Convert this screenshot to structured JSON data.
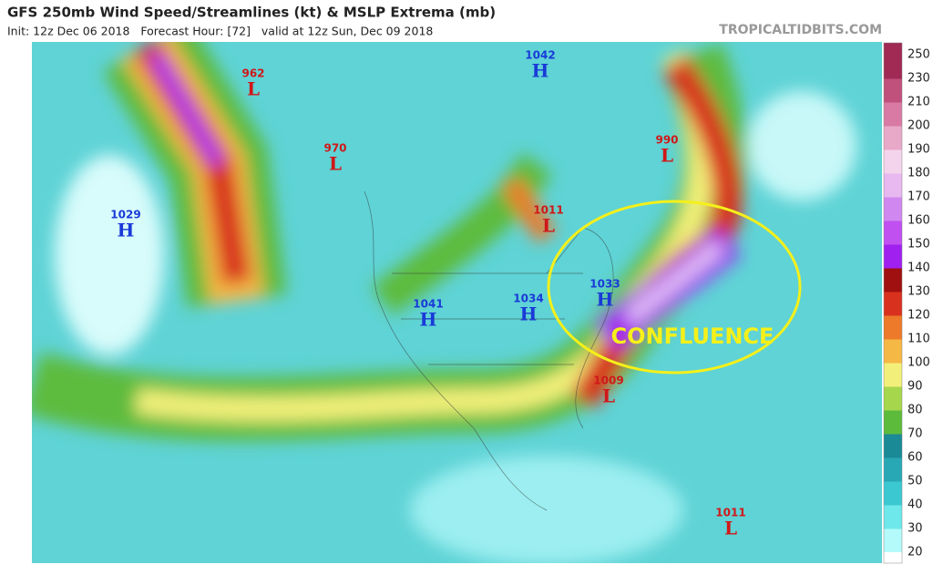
{
  "header": {
    "title": "GFS 250mb Wind Speed/Streamlines (kt) & MSLP Extrema (mb)",
    "subtitle": "Init: 12z Dec 06 2018   Forecast Hour: [72]   valid at 12z Sun, Dec 09 2018",
    "source": "TROPICALTIDBITS.COM"
  },
  "pressure_centers": [
    {
      "type": "L",
      "value": 962
    },
    {
      "type": "L",
      "value": 970
    },
    {
      "type": "H",
      "value": 1029
    },
    {
      "type": "H",
      "value": 1042
    },
    {
      "type": "L",
      "value": 990
    },
    {
      "type": "L",
      "value": 1011
    },
    {
      "type": "H",
      "value": 1041
    },
    {
      "type": "H",
      "value": 1034
    },
    {
      "type": "H",
      "value": 1033
    },
    {
      "type": "L",
      "value": 1009
    },
    {
      "type": "L",
      "value": 1011
    }
  ],
  "annotation": "CONFLUENCE",
  "colorbar": {
    "ticks": [
      20,
      30,
      40,
      50,
      60,
      70,
      80,
      90,
      100,
      110,
      120,
      130,
      140,
      150,
      160,
      170,
      180,
      190,
      200,
      210,
      230,
      250
    ],
    "colors": [
      "#b4fafa",
      "#6ee8ea",
      "#3cc8d0",
      "#28a8b4",
      "#1a8a96",
      "#5dbb3c",
      "#a6d64c",
      "#f2f07a",
      "#f6b844",
      "#ec7a2a",
      "#d8321e",
      "#a01010",
      "#a020f0",
      "#c050f0",
      "#d088f0",
      "#e8b8f0",
      "#f4d4ec",
      "#e8a8c8",
      "#d87aa4",
      "#c0507c",
      "#a02a54"
    ]
  }
}
